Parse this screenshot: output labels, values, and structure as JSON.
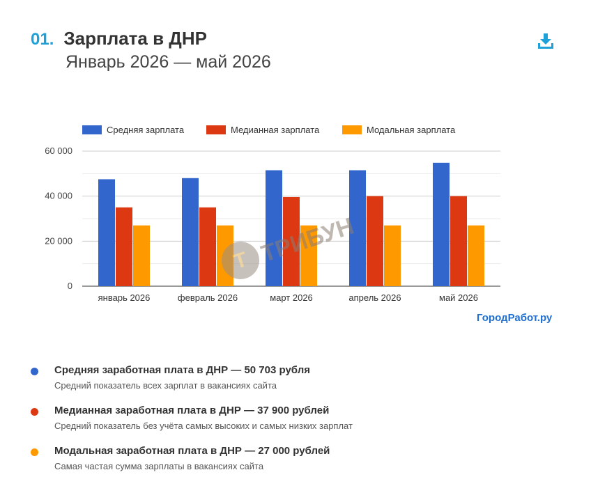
{
  "header": {
    "number": "01.",
    "title": "Зарплата в ДНР",
    "subtitle": "Январь 2026 — май 2026"
  },
  "icons": {
    "download": "download-icon"
  },
  "colors": {
    "accent": "#1ea0d9",
    "series": [
      "#3366cc",
      "#dc3912",
      "#ff9900"
    ]
  },
  "chart_data": {
    "type": "bar",
    "categories": [
      "январь 2026",
      "февраль 2026",
      "март 2026",
      "апрель 2026",
      "май 2026"
    ],
    "series": [
      {
        "name": "Средняя зарплата",
        "values": [
          47500,
          48000,
          51500,
          51500,
          54800
        ]
      },
      {
        "name": "Медианная зарплата",
        "values": [
          35000,
          35000,
          39600,
          40000,
          40000
        ]
      },
      {
        "name": "Модальная зарплата",
        "values": [
          27000,
          27000,
          27000,
          27000,
          27000
        ]
      }
    ],
    "yticks": [
      "0",
      "20 000",
      "40 000",
      "60 000"
    ],
    "ylim": [
      0,
      60000
    ],
    "grid": true,
    "legend": "top"
  },
  "source": "ГородРабот.ру",
  "watermark": "ТРИБУН",
  "notes": [
    {
      "title": "Средняя заработная плата в ДНР — 50 703 рубля",
      "text": "Средний показатель всех зарплат в вакансиях сайта"
    },
    {
      "title": "Медианная заработная плата в ДНР — 37 900 рублей",
      "text": "Средний показатель без учёта самых высоких и самых низких зарплат"
    },
    {
      "title": "Модальная заработная плата в ДНР — 27 000 рублей",
      "text": "Самая частая сумма зарплаты в вакансиях сайта"
    }
  ]
}
